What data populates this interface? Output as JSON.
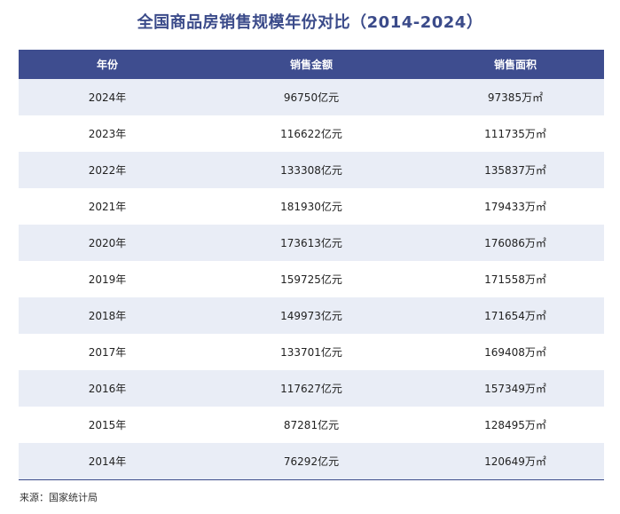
{
  "title": "全国商品房销售规模年份对比（2014-2024）",
  "table": {
    "headers": [
      "年份",
      "销售金额",
      "销售面积"
    ],
    "rows": [
      [
        "2024年",
        "96750亿元",
        "97385万㎡"
      ],
      [
        "2023年",
        "116622亿元",
        "111735万㎡"
      ],
      [
        "2022年",
        "133308亿元",
        "135837万㎡"
      ],
      [
        "2021年",
        "181930亿元",
        "179433万㎡"
      ],
      [
        "2020年",
        "173613亿元",
        "176086万㎡"
      ],
      [
        "2019年",
        "159725亿元",
        "171558万㎡"
      ],
      [
        "2018年",
        "149973亿元",
        "171654万㎡"
      ],
      [
        "2017年",
        "133701亿元",
        "169408万㎡"
      ],
      [
        "2016年",
        "117627亿元",
        "157349万㎡"
      ],
      [
        "2015年",
        "87281亿元",
        "128495万㎡"
      ],
      [
        "2014年",
        "76292亿元",
        "120649万㎡"
      ]
    ]
  },
  "source": "来源：国家统计局",
  "colors": {
    "header_bg": "#3e4d8f",
    "band_bg": "#e9edf6",
    "title": "#3b4b8a"
  }
}
